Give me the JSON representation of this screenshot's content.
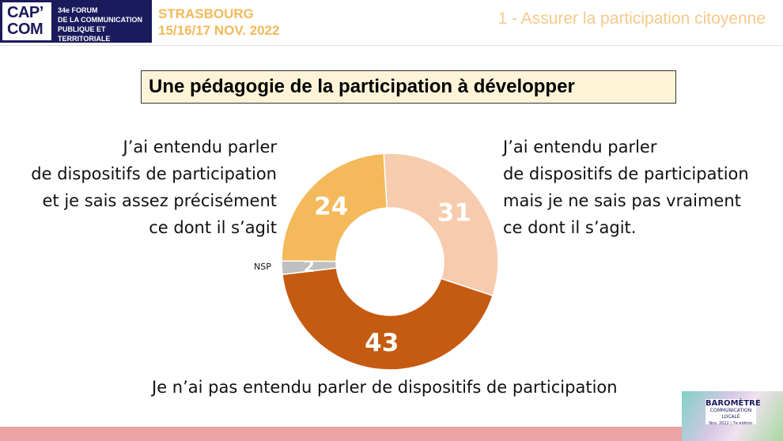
{
  "header": {
    "logo_text": "CAP' COM",
    "forum_lines": [
      "34e FORUM",
      "DE LA COMMUNICATION",
      "PUBLIQUE ET TERRITORIALE"
    ],
    "city": "STRASBOURG",
    "dates": "15/16/17 NOV. 2022",
    "section": "1 - Assurer la participation citoyenne"
  },
  "title": "Une pédagogie de la participation à développer",
  "labels": {
    "left": [
      "J’ai entendu parler",
      "de dispositifs de participation",
      "et je sais assez précisément",
      "ce dont il s’agit"
    ],
    "right": [
      "J’ai entendu parler",
      "de dispositifs de participation",
      "mais je ne sais pas vraiment",
      "ce dont il s’agit."
    ],
    "bottom": "Je n’ai pas entendu parler de dispositifs de participation",
    "nsp": "NSP"
  },
  "badge": {
    "title": "BAROMÈTRE",
    "subtitle": "COMMUNICATION LOCALE",
    "date": "Nov. 2022 | 7e édition"
  },
  "chart_data": {
    "type": "pie",
    "donut": true,
    "title": "Une pédagogie de la participation à développer",
    "categories": [
      "J’ai entendu parler mais je ne sais pas vraiment",
      "Je n’ai pas entendu parler",
      "NSP",
      "J’ai entendu parler et je sais assez précisément"
    ],
    "values": [
      31,
      43,
      2,
      24
    ],
    "colors": [
      "#f7cbad",
      "#c55a11",
      "#bfbfbf",
      "#f4b95a"
    ],
    "data_labels": [
      "31",
      "43",
      "2",
      "24"
    ]
  }
}
